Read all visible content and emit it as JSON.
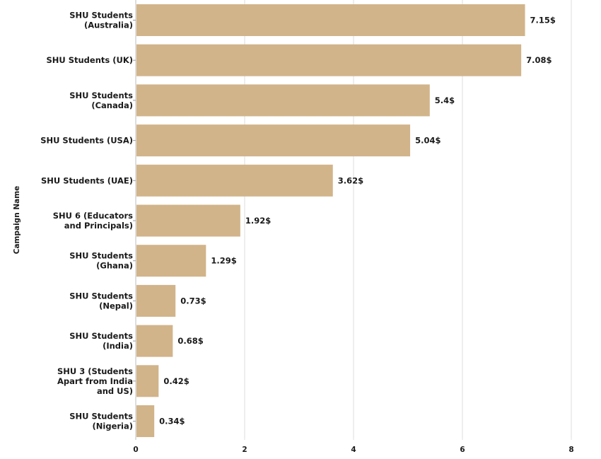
{
  "chart_data": {
    "type": "bar",
    "orientation": "horizontal",
    "ylabel": "Campaign Name",
    "xlabel": "",
    "value_suffix": "$",
    "xlim": [
      0,
      8
    ],
    "xticks": [
      "0",
      "2",
      "4",
      "6",
      "8"
    ],
    "grid": true,
    "bar_color": "#d2b48a",
    "categories": [
      [
        "SHU Students",
        "(Australia)"
      ],
      [
        "SHU Students (UK)"
      ],
      [
        "SHU Students",
        "(Canada)"
      ],
      [
        "SHU Students (USA)"
      ],
      [
        "SHU Students (UAE)"
      ],
      [
        "SHU 6 (Educators",
        "and Principals)"
      ],
      [
        "SHU Students",
        "(Ghana)"
      ],
      [
        "SHU Students",
        "(Nepal)"
      ],
      [
        "SHU Students",
        "(India)"
      ],
      [
        "SHU 3 (Students",
        "Apart from India",
        "and US)"
      ],
      [
        "SHU Students",
        "(Nigeria)"
      ]
    ],
    "values": [
      7.15,
      7.08,
      5.4,
      5.04,
      3.62,
      1.92,
      1.29,
      0.73,
      0.68,
      0.42,
      0.34
    ],
    "value_labels": [
      "7.15$",
      "7.08$",
      "5.4$",
      "5.04$",
      "3.62$",
      "1.92$",
      "1.29$",
      "0.73$",
      "0.68$",
      "0.42$",
      "0.34$"
    ]
  }
}
